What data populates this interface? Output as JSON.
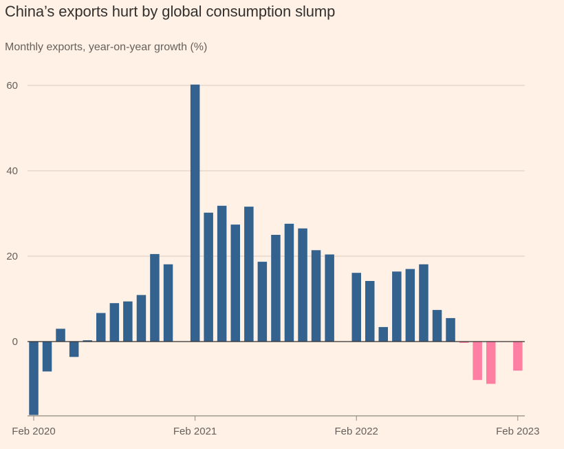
{
  "chart_data": {
    "type": "bar",
    "title": "China’s exports hurt by global consumption slump",
    "subtitle": "Monthly exports, year-on-year growth (%)",
    "xlabel": "",
    "ylabel": "",
    "ylim": [
      -17.4,
      62
    ],
    "yticks": [
      0,
      20,
      40,
      60
    ],
    "ytick_labels": [
      "0",
      "20",
      "40",
      "60"
    ],
    "xtick_labels": [
      "Feb 2020",
      "Feb 2021",
      "Feb 2022",
      "Feb 2023"
    ],
    "xtick_categories": [
      "Feb 2020",
      "Feb 2021",
      "Feb 2022",
      "Feb 2023"
    ],
    "grid": true,
    "legend": "none",
    "colors": {
      "positive": "#33628e",
      "negative_recent": "#ff7fa3",
      "background": "#fff1e5"
    },
    "negative_highlight_from": "Oct 2022",
    "categories": [
      "Feb 2020",
      "Mar 2020",
      "Apr 2020",
      "May 2020",
      "Jun 2020",
      "Jul 2020",
      "Aug 2020",
      "Sep 2020",
      "Oct 2020",
      "Nov 2020",
      "Dec 2020",
      "Jan 2021",
      "Feb 2021",
      "Mar 2021",
      "Apr 2021",
      "May 2021",
      "Jun 2021",
      "Jul 2021",
      "Aug 2021",
      "Sep 2021",
      "Oct 2021",
      "Nov 2021",
      "Dec 2021",
      "Jan 2022",
      "Feb 2022",
      "Mar 2022",
      "Apr 2022",
      "May 2022",
      "Jun 2022",
      "Jul 2022",
      "Aug 2022",
      "Sep 2022",
      "Oct 2022",
      "Nov 2022",
      "Dec 2022",
      "Jan 2023",
      "Feb 2023"
    ],
    "values": [
      -17.2,
      -7.0,
      3.0,
      -3.6,
      0.3,
      6.7,
      9.0,
      9.4,
      10.9,
      20.5,
      18.1,
      null,
      60.2,
      30.2,
      31.8,
      27.4,
      31.6,
      18.7,
      25.0,
      27.6,
      26.5,
      21.4,
      20.4,
      null,
      16.1,
      14.2,
      3.4,
      16.4,
      17.0,
      18.1,
      7.4,
      5.5,
      -0.3,
      -9.0,
      -9.9,
      null,
      -6.8
    ]
  }
}
